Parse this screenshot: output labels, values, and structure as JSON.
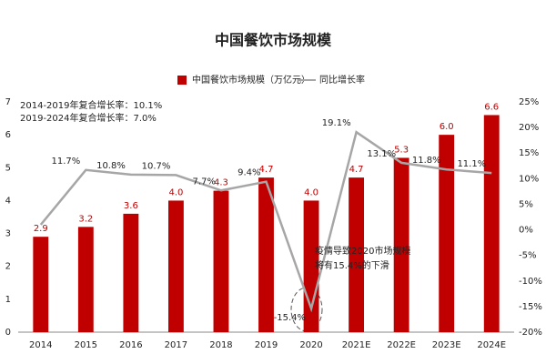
{
  "chart_data": {
    "type": "bar-line",
    "title": "中国餐饮市场规模",
    "categories": [
      "2014",
      "2015",
      "2016",
      "2017",
      "2018",
      "2019",
      "2020",
      "2021E",
      "2022E",
      "2023E",
      "2024E"
    ],
    "series": [
      {
        "name": "中国餐饮市场规模（万亿元）",
        "color": "#c00000",
        "type": "bar",
        "values": [
          2.9,
          3.2,
          3.6,
          4.0,
          4.3,
          4.7,
          4.0,
          4.7,
          5.3,
          6.0,
          6.6
        ],
        "value_labels": [
          "2.9",
          "3.2",
          "3.6",
          "4.0",
          "4.3",
          "4.7",
          "4.0",
          "4.7",
          "5.3",
          "6.0",
          "6.6"
        ]
      },
      {
        "name": "同比增长率",
        "color": "#a6a6a6",
        "type": "line",
        "axis": "y2",
        "values": [
          1,
          11.7,
          10.8,
          10.7,
          7.7,
          9.4,
          -15.4,
          19.1,
          13.1,
          11.8,
          11.1
        ],
        "value_labels": [
          null,
          "11.7%",
          "10.8%",
          "10.7%",
          "7.7%",
          "9.4%",
          "-15.4%",
          "19.1%",
          "13.1%",
          "11.8%",
          "11.1%"
        ]
      }
    ],
    "ylim": [
      0,
      7
    ],
    "yticks": [
      0,
      1,
      2,
      3,
      4,
      5,
      6,
      7
    ],
    "y2lim": [
      -20,
      25
    ],
    "y2ticks": [
      {
        "value": -20,
        "label": "-20%"
      },
      {
        "value": -15,
        "label": "-15%"
      },
      {
        "value": -10,
        "label": "-10%"
      },
      {
        "value": -5,
        "label": "-5%"
      },
      {
        "value": 0,
        "label": "0%"
      },
      {
        "value": 5,
        "label": "5%"
      },
      {
        "value": 10,
        "label": "10%"
      },
      {
        "value": 15,
        "label": "15%"
      },
      {
        "value": 20,
        "label": "20%"
      },
      {
        "value": 25,
        "label": "25%"
      }
    ],
    "annotations": [
      "2014-2019年复合增长率：10.1%",
      "2019-2024年复合增长率：7.0%",
      "疫情导致2020市场规模",
      "将有15.4%的下滑"
    ]
  }
}
